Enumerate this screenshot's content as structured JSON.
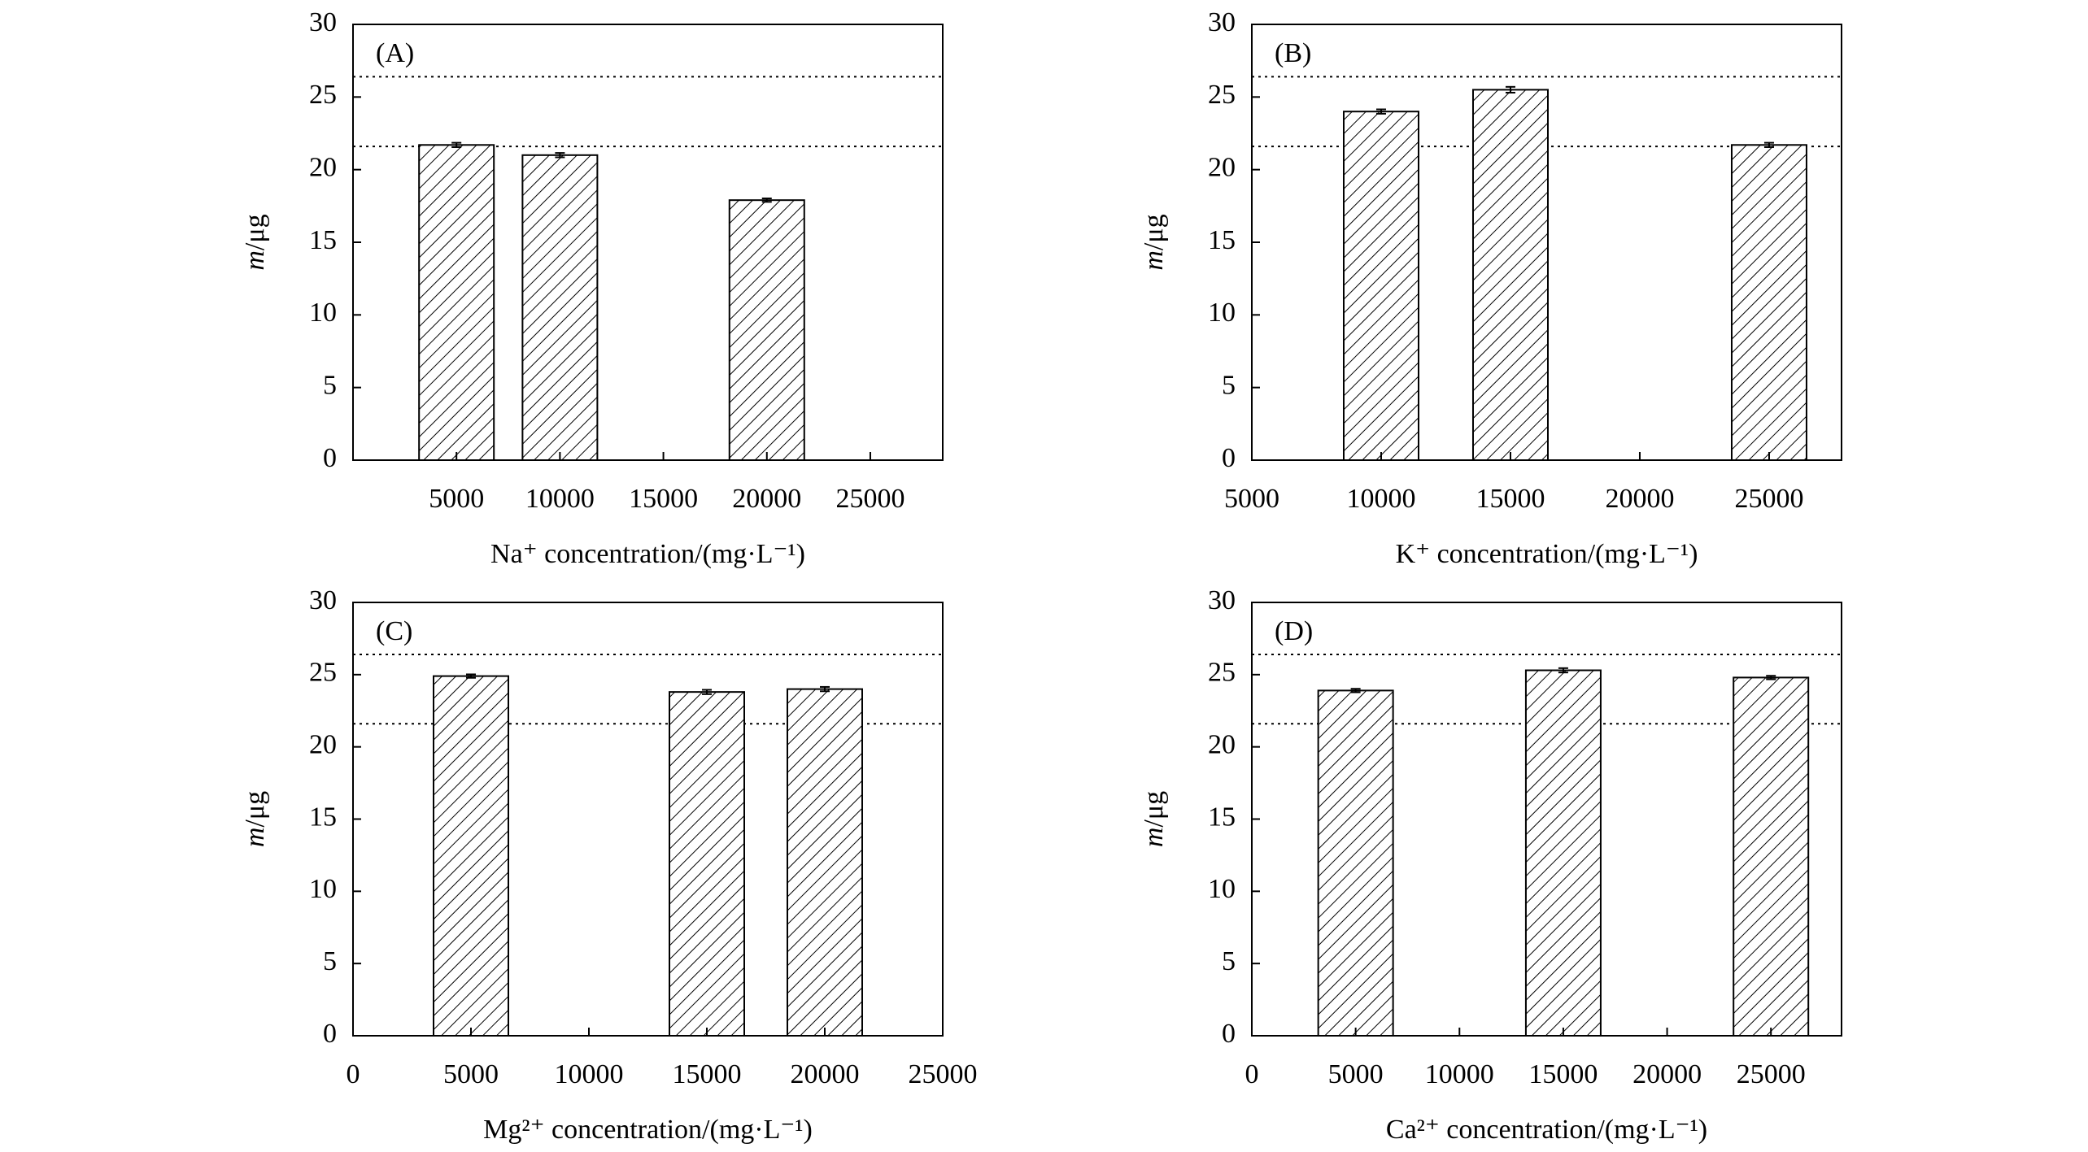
{
  "chart_data": [
    {
      "type": "bar",
      "panel_label": "(A)",
      "y_label_var": "m",
      "y_label_unit": "/μg",
      "x_label": "Na⁺ concentration/(mg·L⁻¹)",
      "x": [
        5000,
        10000,
        20000
      ],
      "values": [
        21.7,
        21.0,
        17.9
      ],
      "errors": [
        0.15,
        0.15,
        0.12
      ],
      "xlim": [
        0,
        28500
      ],
      "xticks": [
        5000,
        10000,
        15000,
        20000,
        25000
      ],
      "ylim": [
        0,
        30
      ],
      "yticks": [
        0,
        5,
        10,
        15,
        20,
        25,
        30
      ],
      "reference_lines": [
        26.4,
        21.6
      ]
    },
    {
      "type": "bar",
      "panel_label": "(B)",
      "y_label_var": "m",
      "y_label_unit": "/μg",
      "x_label": "K⁺ concentration/(mg·L⁻¹)",
      "x": [
        10000,
        15000,
        25000
      ],
      "values": [
        24.0,
        25.5,
        21.7
      ],
      "errors": [
        0.15,
        0.2,
        0.15
      ],
      "xlim": [
        5000,
        27800
      ],
      "xticks": [
        5000,
        10000,
        15000,
        20000,
        25000
      ],
      "ylim": [
        0,
        30
      ],
      "yticks": [
        0,
        5,
        10,
        15,
        20,
        25,
        30
      ],
      "reference_lines": [
        26.4,
        21.6
      ]
    },
    {
      "type": "bar",
      "panel_label": "(C)",
      "y_label_var": "m",
      "y_label_unit": "/μg",
      "x_label": "Mg²⁺ concentration/(mg·L⁻¹)",
      "x": [
        5000,
        15000,
        20000
      ],
      "values": [
        24.9,
        23.8,
        24.0
      ],
      "errors": [
        0.12,
        0.15,
        0.15
      ],
      "xlim": [
        0,
        25000
      ],
      "xticks": [
        0,
        5000,
        10000,
        15000,
        20000,
        25000
      ],
      "ylim": [
        0,
        30
      ],
      "yticks": [
        0,
        5,
        10,
        15,
        20,
        25,
        30
      ],
      "reference_lines": [
        26.4,
        21.6
      ]
    },
    {
      "type": "bar",
      "panel_label": "(D)",
      "y_label_var": "m",
      "y_label_unit": "/μg",
      "x_label": "Ca²⁺ concentration/(mg·L⁻¹)",
      "x": [
        5000,
        15000,
        25000
      ],
      "values": [
        23.9,
        25.3,
        24.8
      ],
      "errors": [
        0.12,
        0.15,
        0.12
      ],
      "xlim": [
        0,
        28400
      ],
      "xticks": [
        0,
        5000,
        10000,
        15000,
        20000,
        25000
      ],
      "ylim": [
        0,
        30
      ],
      "yticks": [
        0,
        5,
        10,
        15,
        20,
        25,
        30
      ],
      "reference_lines": [
        26.4,
        21.6
      ]
    }
  ]
}
